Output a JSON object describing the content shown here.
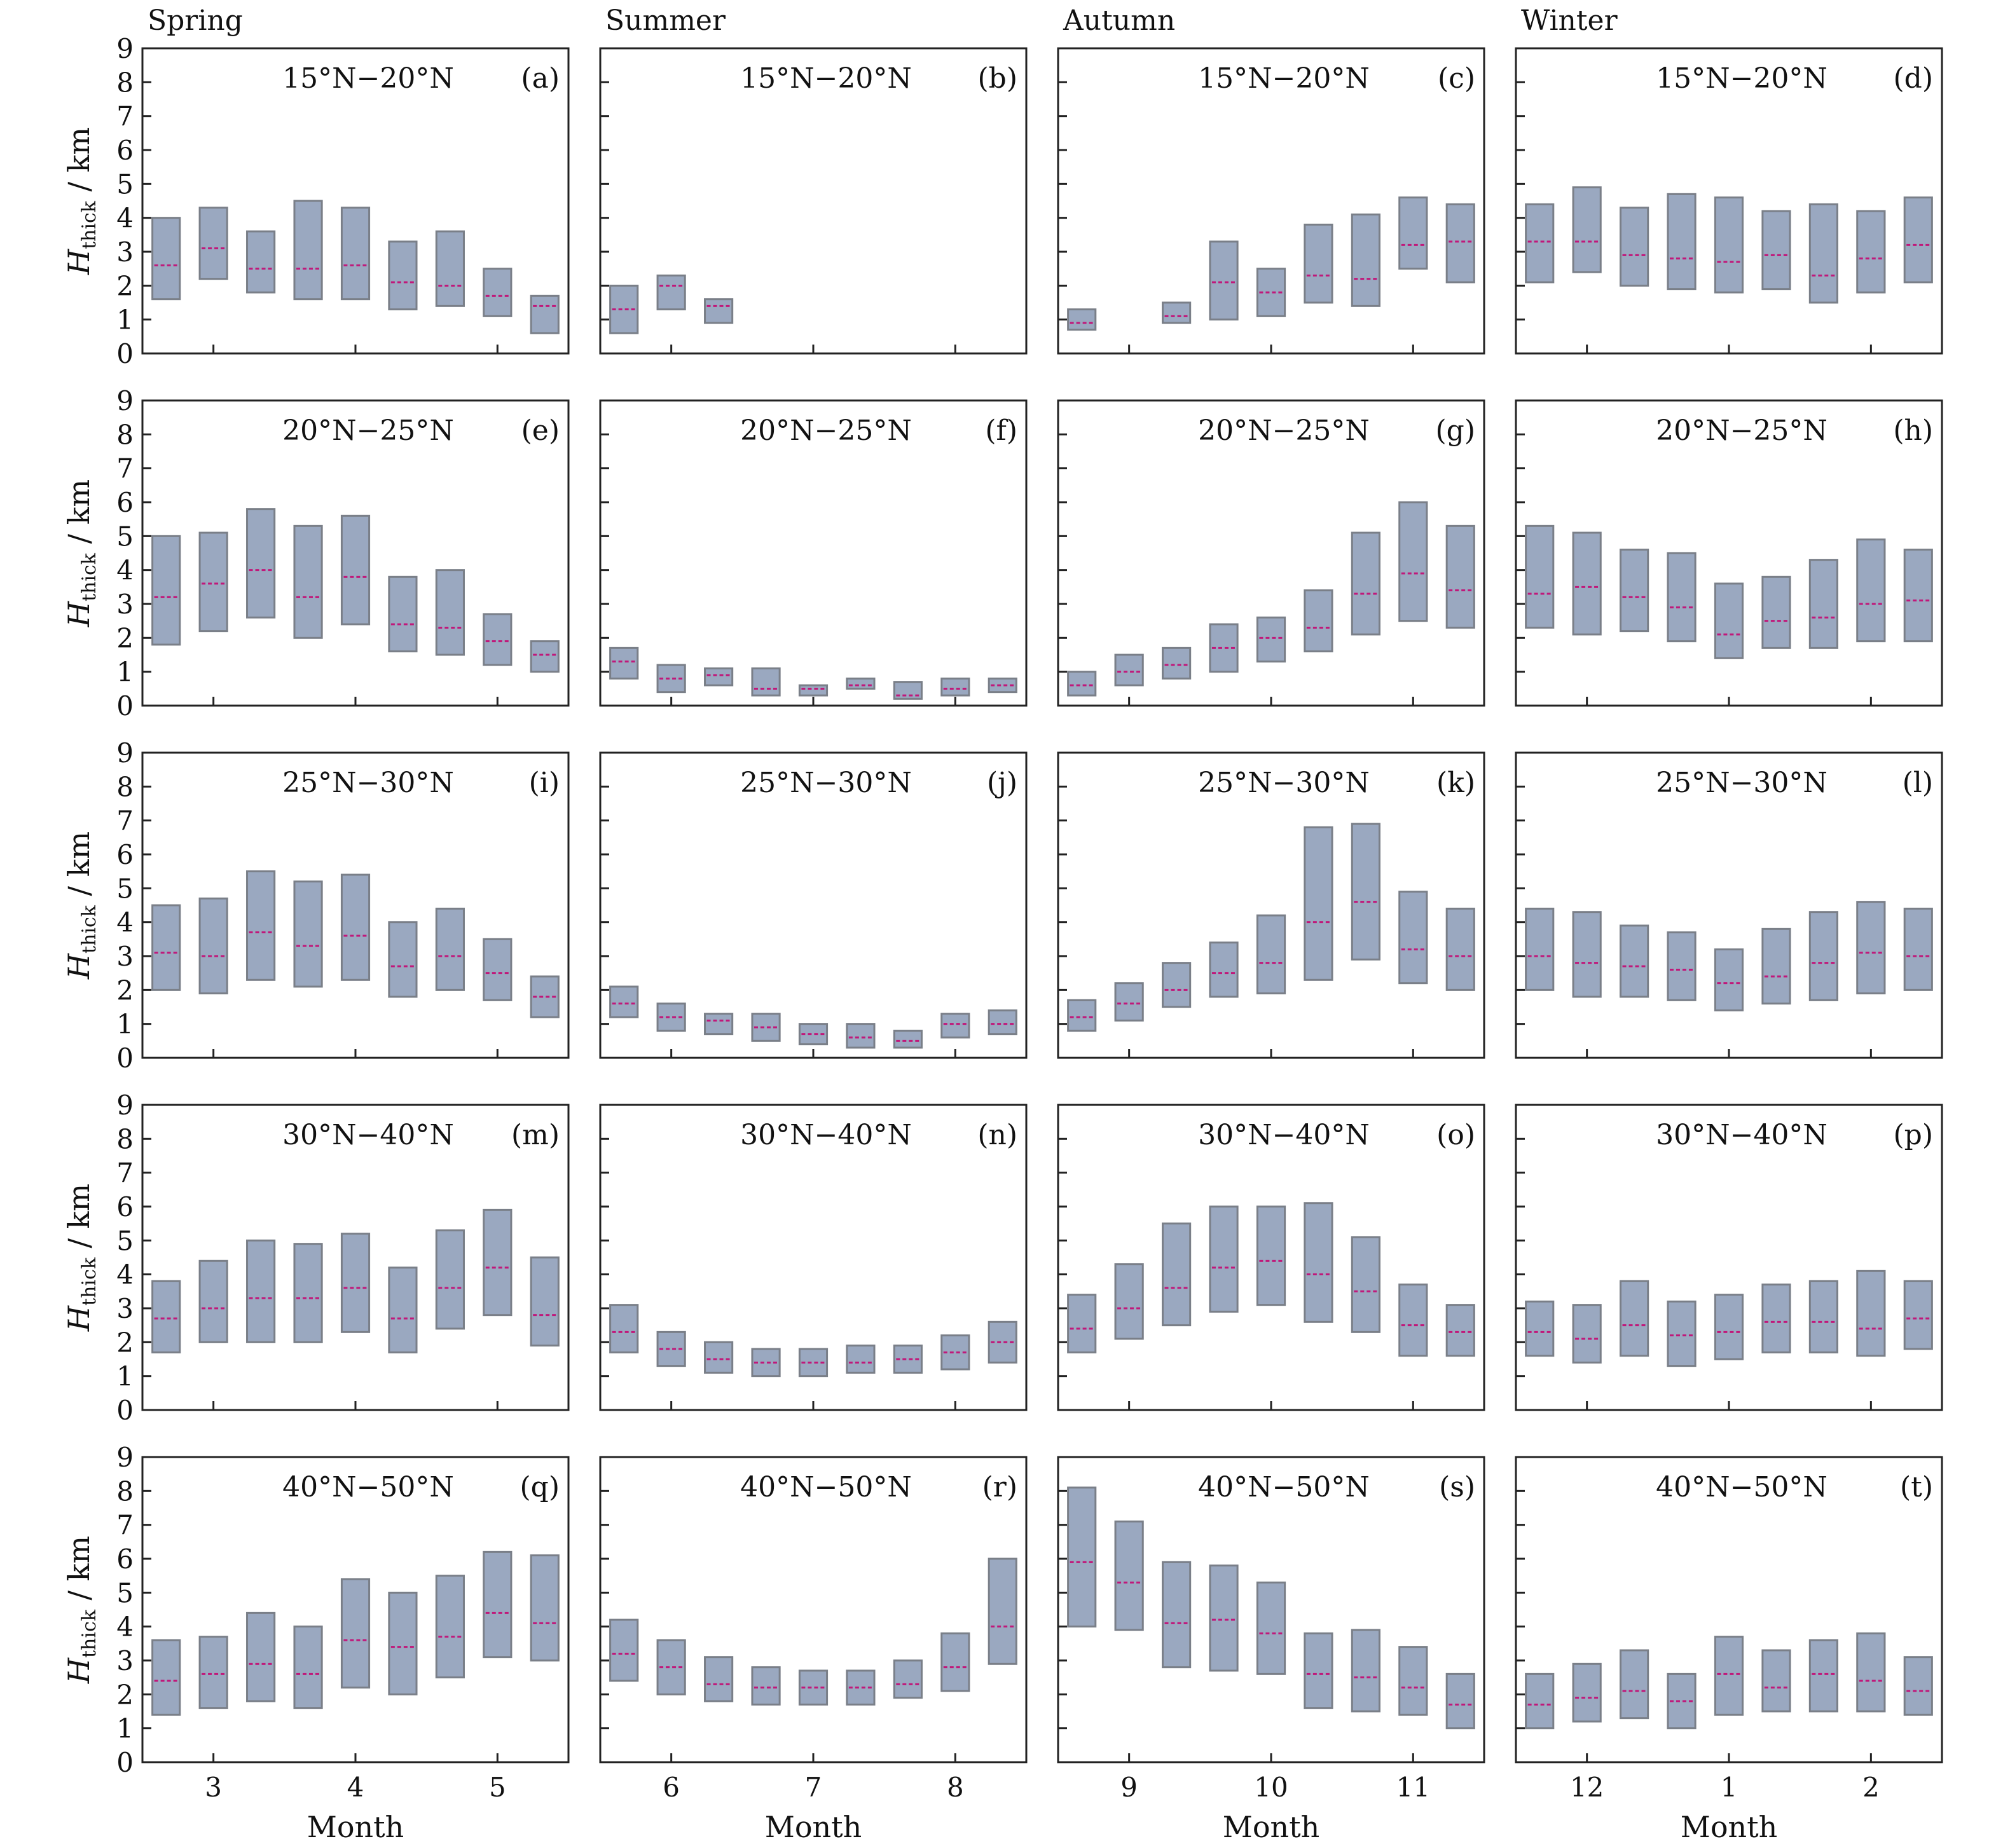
{
  "figure": {
    "season_titles": [
      "Spring",
      "Summer",
      "Autumn",
      "Winter"
    ],
    "y_axis_label": {
      "symbol": "H",
      "subscript": "thick",
      "unit": " / km"
    },
    "x_axis_label": "Month",
    "latitude_bands": [
      "15°N−20°N",
      "20°N−25°N",
      "25°N−30°N",
      "30°N−40°N",
      "40°N−50°N"
    ],
    "y_ticks": [
      "0",
      "1",
      "2",
      "3",
      "4",
      "5",
      "6",
      "7",
      "8",
      "9"
    ],
    "x_ticks": [
      {
        "labels": [
          "3",
          "4",
          "5"
        ],
        "positions": [
          1.5,
          4.5,
          7.5
        ]
      },
      {
        "labels": [
          "6",
          "7",
          "8"
        ],
        "positions": [
          1.5,
          4.5,
          7.5
        ]
      },
      {
        "labels": [
          "9",
          "10",
          "11"
        ],
        "positions": [
          1.5,
          4.5,
          7.5
        ]
      },
      {
        "labels": [
          "12",
          "1",
          "2"
        ],
        "positions": [
          1.5,
          4.5,
          7.5
        ]
      }
    ],
    "colors": {
      "box_fill": "#9aa8c0",
      "box_stroke": "#7a7f88",
      "median": "#c0187a",
      "axes": "#222222"
    }
  },
  "chart_data": [
    {
      "type": "box",
      "panel_label": "(a)",
      "title": "15°N−20°N",
      "season": "Spring",
      "ylim": [
        0,
        9
      ],
      "boxes": [
        [
          1.6,
          2.6,
          4.0
        ],
        [
          2.2,
          3.1,
          4.3
        ],
        [
          1.8,
          2.5,
          3.6
        ],
        [
          1.6,
          2.5,
          4.5
        ],
        [
          1.6,
          2.6,
          4.3
        ],
        [
          1.3,
          2.1,
          3.3
        ],
        [
          1.4,
          2.0,
          3.6
        ],
        [
          1.1,
          1.7,
          2.5
        ],
        [
          0.6,
          1.4,
          1.7
        ]
      ]
    },
    {
      "type": "box",
      "panel_label": "(b)",
      "title": "15°N−20°N",
      "season": "Summer",
      "ylim": [
        0,
        9
      ],
      "boxes": [
        [
          0.6,
          1.3,
          2.0
        ],
        [
          1.3,
          2.0,
          2.3
        ],
        [
          0.9,
          1.4,
          1.6
        ],
        null,
        null,
        null,
        null,
        null,
        null
      ]
    },
    {
      "type": "box",
      "panel_label": "(c)",
      "title": "15°N−20°N",
      "season": "Autumn",
      "ylim": [
        0,
        9
      ],
      "boxes": [
        [
          0.7,
          0.9,
          1.3
        ],
        null,
        [
          0.9,
          1.1,
          1.5
        ],
        [
          1.0,
          2.1,
          3.3
        ],
        [
          1.1,
          1.8,
          2.5
        ],
        [
          1.5,
          2.3,
          3.8
        ],
        [
          1.4,
          2.2,
          4.1
        ],
        [
          2.5,
          3.2,
          4.6
        ],
        [
          2.1,
          3.3,
          4.4
        ]
      ]
    },
    {
      "type": "box",
      "panel_label": "(d)",
      "title": "15°N−20°N",
      "season": "Winter",
      "ylim": [
        0,
        9
      ],
      "boxes": [
        [
          2.1,
          3.3,
          4.4
        ],
        [
          2.4,
          3.3,
          4.9
        ],
        [
          2.0,
          2.9,
          4.3
        ],
        [
          1.9,
          2.8,
          4.7
        ],
        [
          1.8,
          2.7,
          4.6
        ],
        [
          1.9,
          2.9,
          4.2
        ],
        [
          1.5,
          2.3,
          4.4
        ],
        [
          1.8,
          2.8,
          4.2
        ],
        [
          2.1,
          3.2,
          4.6
        ]
      ]
    },
    {
      "type": "box",
      "panel_label": "(e)",
      "title": "20°N−25°N",
      "season": "Spring",
      "ylim": [
        0,
        9
      ],
      "boxes": [
        [
          1.8,
          3.2,
          5.0
        ],
        [
          2.2,
          3.6,
          5.1
        ],
        [
          2.6,
          4.0,
          5.8
        ],
        [
          2.0,
          3.2,
          5.3
        ],
        [
          2.4,
          3.8,
          5.6
        ],
        [
          1.6,
          2.4,
          3.8
        ],
        [
          1.5,
          2.3,
          4.0
        ],
        [
          1.2,
          1.9,
          2.7
        ],
        [
          1.0,
          1.5,
          1.9
        ]
      ]
    },
    {
      "type": "box",
      "panel_label": "(f)",
      "title": "20°N−25°N",
      "season": "Summer",
      "ylim": [
        0,
        9
      ],
      "boxes": [
        [
          0.8,
          1.3,
          1.7
        ],
        [
          0.4,
          0.8,
          1.2
        ],
        [
          0.6,
          0.9,
          1.1
        ],
        [
          0.3,
          0.5,
          1.1
        ],
        [
          0.3,
          0.5,
          0.6
        ],
        [
          0.5,
          0.6,
          0.8
        ],
        [
          0.2,
          0.3,
          0.7
        ],
        [
          0.3,
          0.5,
          0.8
        ],
        [
          0.4,
          0.6,
          0.8
        ]
      ]
    },
    {
      "type": "box",
      "panel_label": "(g)",
      "title": "20°N−25°N",
      "season": "Autumn",
      "ylim": [
        0,
        9
      ],
      "boxes": [
        [
          0.3,
          0.6,
          1.0
        ],
        [
          0.6,
          1.0,
          1.5
        ],
        [
          0.8,
          1.2,
          1.7
        ],
        [
          1.0,
          1.7,
          2.4
        ],
        [
          1.3,
          2.0,
          2.6
        ],
        [
          1.6,
          2.3,
          3.4
        ],
        [
          2.1,
          3.3,
          5.1
        ],
        [
          2.5,
          3.9,
          6.0
        ],
        [
          2.3,
          3.4,
          5.3
        ]
      ]
    },
    {
      "type": "box",
      "panel_label": "(h)",
      "title": "20°N−25°N",
      "season": "Winter",
      "ylim": [
        0,
        9
      ],
      "boxes": [
        [
          2.3,
          3.3,
          5.3
        ],
        [
          2.1,
          3.5,
          5.1
        ],
        [
          2.2,
          3.2,
          4.6
        ],
        [
          1.9,
          2.9,
          4.5
        ],
        [
          1.4,
          2.1,
          3.6
        ],
        [
          1.7,
          2.5,
          3.8
        ],
        [
          1.7,
          2.6,
          4.3
        ],
        [
          1.9,
          3.0,
          4.9
        ],
        [
          1.9,
          3.1,
          4.6
        ]
      ]
    },
    {
      "type": "box",
      "panel_label": "(i)",
      "title": "25°N−30°N",
      "season": "Spring",
      "ylim": [
        0,
        9
      ],
      "boxes": [
        [
          2.0,
          3.1,
          4.5
        ],
        [
          1.9,
          3.0,
          4.7
        ],
        [
          2.3,
          3.7,
          5.5
        ],
        [
          2.1,
          3.3,
          5.2
        ],
        [
          2.3,
          3.6,
          5.4
        ],
        [
          1.8,
          2.7,
          4.0
        ],
        [
          2.0,
          3.0,
          4.4
        ],
        [
          1.7,
          2.5,
          3.5
        ],
        [
          1.2,
          1.8,
          2.4
        ]
      ]
    },
    {
      "type": "box",
      "panel_label": "(j)",
      "title": "25°N−30°N",
      "season": "Summer",
      "ylim": [
        0,
        9
      ],
      "boxes": [
        [
          1.2,
          1.6,
          2.1
        ],
        [
          0.8,
          1.2,
          1.6
        ],
        [
          0.7,
          1.1,
          1.3
        ],
        [
          0.5,
          0.9,
          1.3
        ],
        [
          0.4,
          0.7,
          1.0
        ],
        [
          0.3,
          0.6,
          1.0
        ],
        [
          0.3,
          0.5,
          0.8
        ],
        [
          0.6,
          1.0,
          1.3
        ],
        [
          0.7,
          1.0,
          1.4
        ]
      ]
    },
    {
      "type": "box",
      "panel_label": "(k)",
      "title": "25°N−30°N",
      "season": "Autumn",
      "ylim": [
        0,
        9
      ],
      "boxes": [
        [
          0.8,
          1.2,
          1.7
        ],
        [
          1.1,
          1.6,
          2.2
        ],
        [
          1.5,
          2.0,
          2.8
        ],
        [
          1.8,
          2.5,
          3.4
        ],
        [
          1.9,
          2.8,
          4.2
        ],
        [
          2.3,
          4.0,
          6.8
        ],
        [
          2.9,
          4.6,
          6.9
        ],
        [
          2.2,
          3.2,
          4.9
        ],
        [
          2.0,
          3.0,
          4.4
        ]
      ]
    },
    {
      "type": "box",
      "panel_label": "(l)",
      "title": "25°N−30°N",
      "season": "Winter",
      "ylim": [
        0,
        9
      ],
      "boxes": [
        [
          2.0,
          3.0,
          4.4
        ],
        [
          1.8,
          2.8,
          4.3
        ],
        [
          1.8,
          2.7,
          3.9
        ],
        [
          1.7,
          2.6,
          3.7
        ],
        [
          1.4,
          2.2,
          3.2
        ],
        [
          1.6,
          2.4,
          3.8
        ],
        [
          1.7,
          2.8,
          4.3
        ],
        [
          1.9,
          3.1,
          4.6
        ],
        [
          2.0,
          3.0,
          4.4
        ]
      ]
    },
    {
      "type": "box",
      "panel_label": "(m)",
      "title": "30°N−40°N",
      "season": "Spring",
      "ylim": [
        0,
        9
      ],
      "boxes": [
        [
          1.7,
          2.7,
          3.8
        ],
        [
          2.0,
          3.0,
          4.4
        ],
        [
          2.0,
          3.3,
          5.0
        ],
        [
          2.0,
          3.3,
          4.9
        ],
        [
          2.3,
          3.6,
          5.2
        ],
        [
          1.7,
          2.7,
          4.2
        ],
        [
          2.4,
          3.6,
          5.3
        ],
        [
          2.8,
          4.2,
          5.9
        ],
        [
          1.9,
          2.8,
          4.5
        ]
      ]
    },
    {
      "type": "box",
      "panel_label": "(n)",
      "title": "30°N−40°N",
      "season": "Summer",
      "ylim": [
        0,
        9
      ],
      "boxes": [
        [
          1.7,
          2.3,
          3.1
        ],
        [
          1.3,
          1.8,
          2.3
        ],
        [
          1.1,
          1.5,
          2.0
        ],
        [
          1.0,
          1.4,
          1.8
        ],
        [
          1.0,
          1.4,
          1.8
        ],
        [
          1.1,
          1.4,
          1.9
        ],
        [
          1.1,
          1.5,
          1.9
        ],
        [
          1.2,
          1.7,
          2.2
        ],
        [
          1.4,
          2.0,
          2.6
        ]
      ]
    },
    {
      "type": "box",
      "panel_label": "(o)",
      "title": "30°N−40°N",
      "season": "Autumn",
      "ylim": [
        0,
        9
      ],
      "boxes": [
        [
          1.7,
          2.4,
          3.4
        ],
        [
          2.1,
          3.0,
          4.3
        ],
        [
          2.5,
          3.6,
          5.5
        ],
        [
          2.9,
          4.2,
          6.0
        ],
        [
          3.1,
          4.4,
          6.0
        ],
        [
          2.6,
          4.0,
          6.1
        ],
        [
          2.3,
          3.5,
          5.1
        ],
        [
          1.6,
          2.5,
          3.7
        ],
        [
          1.6,
          2.3,
          3.1
        ]
      ]
    },
    {
      "type": "box",
      "panel_label": "(p)",
      "title": "30°N−40°N",
      "season": "Winter",
      "ylim": [
        0,
        9
      ],
      "boxes": [
        [
          1.6,
          2.3,
          3.2
        ],
        [
          1.4,
          2.1,
          3.1
        ],
        [
          1.6,
          2.5,
          3.8
        ],
        [
          1.3,
          2.2,
          3.2
        ],
        [
          1.5,
          2.3,
          3.4
        ],
        [
          1.7,
          2.6,
          3.7
        ],
        [
          1.7,
          2.6,
          3.8
        ],
        [
          1.6,
          2.4,
          4.1
        ],
        [
          1.8,
          2.7,
          3.8
        ]
      ]
    },
    {
      "type": "box",
      "panel_label": "(q)",
      "title": "40°N−50°N",
      "season": "Spring",
      "ylim": [
        0,
        9
      ],
      "boxes": [
        [
          1.4,
          2.4,
          3.6
        ],
        [
          1.6,
          2.6,
          3.7
        ],
        [
          1.8,
          2.9,
          4.4
        ],
        [
          1.6,
          2.6,
          4.0
        ],
        [
          2.2,
          3.6,
          5.4
        ],
        [
          2.0,
          3.4,
          5.0
        ],
        [
          2.5,
          3.7,
          5.5
        ],
        [
          3.1,
          4.4,
          6.2
        ],
        [
          3.0,
          4.1,
          6.1
        ]
      ]
    },
    {
      "type": "box",
      "panel_label": "(r)",
      "title": "40°N−50°N",
      "season": "Summer",
      "ylim": [
        0,
        9
      ],
      "boxes": [
        [
          2.4,
          3.2,
          4.2
        ],
        [
          2.0,
          2.8,
          3.6
        ],
        [
          1.8,
          2.3,
          3.1
        ],
        [
          1.7,
          2.2,
          2.8
        ],
        [
          1.7,
          2.2,
          2.7
        ],
        [
          1.7,
          2.2,
          2.7
        ],
        [
          1.9,
          2.3,
          3.0
        ],
        [
          2.1,
          2.8,
          3.8
        ],
        [
          2.9,
          4.0,
          6.0
        ]
      ]
    },
    {
      "type": "box",
      "panel_label": "(s)",
      "title": "40°N−50°N",
      "season": "Autumn",
      "ylim": [
        0,
        9
      ],
      "boxes": [
        [
          4.0,
          5.9,
          8.1
        ],
        [
          3.9,
          5.3,
          7.1
        ],
        [
          2.8,
          4.1,
          5.9
        ],
        [
          2.7,
          4.2,
          5.8
        ],
        [
          2.6,
          3.8,
          5.3
        ],
        [
          1.6,
          2.6,
          3.8
        ],
        [
          1.5,
          2.5,
          3.9
        ],
        [
          1.4,
          2.2,
          3.4
        ],
        [
          1.0,
          1.7,
          2.6
        ]
      ]
    },
    {
      "type": "box",
      "panel_label": "(t)",
      "title": "40°N−50°N",
      "season": "Winter",
      "ylim": [
        0,
        9
      ],
      "boxes": [
        [
          1.0,
          1.7,
          2.6
        ],
        [
          1.2,
          1.9,
          2.9
        ],
        [
          1.3,
          2.1,
          3.3
        ],
        [
          1.0,
          1.8,
          2.6
        ],
        [
          1.4,
          2.6,
          3.7
        ],
        [
          1.5,
          2.2,
          3.3
        ],
        [
          1.5,
          2.6,
          3.6
        ],
        [
          1.5,
          2.4,
          3.8
        ],
        [
          1.4,
          2.1,
          3.1
        ]
      ]
    }
  ]
}
